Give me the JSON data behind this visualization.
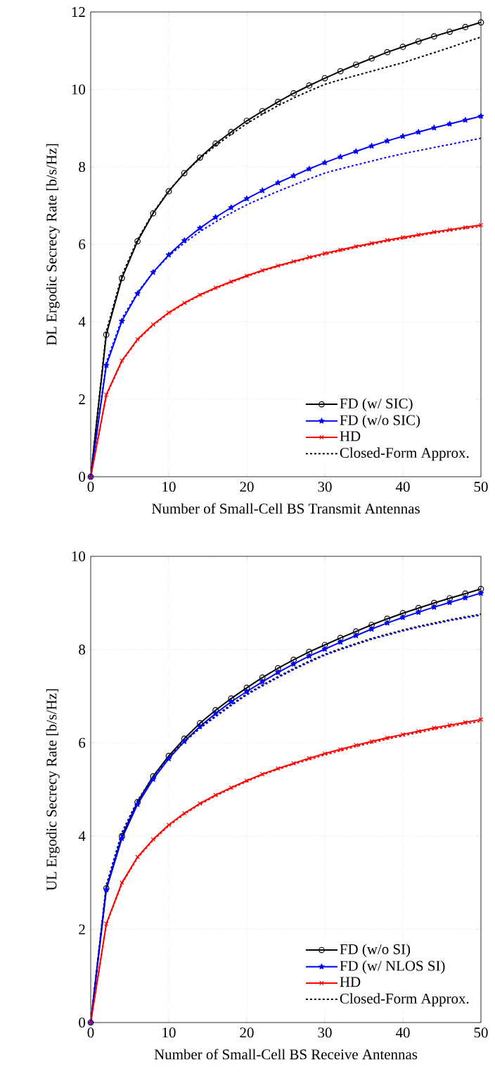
{
  "chart_data": [
    {
      "type": "line",
      "xlabel": "Number of Small-Cell BS Transmit Antennas",
      "ylabel": "DL Ergodic Secrecy Rate [b/s/Hz]",
      "x": [
        0,
        2,
        4,
        6,
        8,
        10,
        12,
        14,
        16,
        18,
        20,
        22,
        24,
        26,
        28,
        30,
        32,
        34,
        36,
        38,
        40,
        42,
        44,
        46,
        48,
        50
      ],
      "xlim": [
        0,
        50
      ],
      "xticks": [
        0,
        10,
        20,
        30,
        40,
        50
      ],
      "ylim": [
        0,
        12
      ],
      "yticks": [
        0,
        2,
        4,
        6,
        8,
        10,
        12
      ],
      "grid": true,
      "legend": "bottom right",
      "series": [
        {
          "name": "FD (w/ SIC)",
          "color": "#000000",
          "marker": "circle",
          "line_style": "solid",
          "values": [
            0,
            3.67,
            5.13,
            6.08,
            6.8,
            7.37,
            7.84,
            8.24,
            8.6,
            8.9,
            9.19,
            9.44,
            9.68,
            9.9,
            10.1,
            10.29,
            10.47,
            10.64,
            10.8,
            10.96,
            11.1,
            11.24,
            11.37,
            11.49,
            11.61,
            11.73
          ]
        },
        {
          "name": "FD (w/o SIC)",
          "color": "#0000ff",
          "marker": "star",
          "line_style": "solid",
          "values": [
            0,
            2.88,
            4.02,
            4.73,
            5.28,
            5.73,
            6.1,
            6.42,
            6.7,
            6.95,
            7.18,
            7.39,
            7.59,
            7.77,
            7.95,
            8.11,
            8.26,
            8.4,
            8.54,
            8.67,
            8.79,
            8.9,
            9.01,
            9.11,
            9.21,
            9.31
          ]
        },
        {
          "name": "HD",
          "color": "#ff0000",
          "marker": "cross",
          "line_style": "solid",
          "values": [
            0,
            2.12,
            3.0,
            3.55,
            3.93,
            4.24,
            4.49,
            4.7,
            4.88,
            5.04,
            5.19,
            5.33,
            5.45,
            5.56,
            5.67,
            5.77,
            5.86,
            5.95,
            6.03,
            6.11,
            6.18,
            6.25,
            6.32,
            6.38,
            6.44,
            6.5
          ]
        },
        {
          "name": "Closed-Form Approx.",
          "color": "#000000",
          "marker": "none",
          "line_style": "dashed",
          "values": [
            0,
            3.75,
            5.2,
            6.12,
            6.82,
            7.38,
            7.84,
            8.22,
            8.55,
            8.84,
            9.12,
            9.36,
            9.58,
            9.78,
            9.96,
            10.13,
            10.25,
            10.36,
            10.47,
            10.58,
            10.69,
            10.82,
            10.95,
            11.08,
            11.22,
            11.35
          ]
        },
        {
          "color": "#0000ff",
          "marker": "none",
          "line_style": "dashed",
          "values": [
            0,
            2.95,
            4.08,
            4.76,
            5.28,
            5.7,
            6.04,
            6.33,
            6.58,
            6.81,
            7.02,
            7.2,
            7.37,
            7.53,
            7.69,
            7.84,
            7.95,
            8.05,
            8.15,
            8.25,
            8.34,
            8.42,
            8.5,
            8.58,
            8.66,
            8.74
          ]
        },
        {
          "color": "#ff0000",
          "marker": "none",
          "line_style": "dashed",
          "values": [
            0,
            2.1,
            2.98,
            3.53,
            3.91,
            4.22,
            4.47,
            4.68,
            4.86,
            5.02,
            5.17,
            5.31,
            5.43,
            5.54,
            5.64,
            5.74,
            5.83,
            5.92,
            6.0,
            6.08,
            6.15,
            6.22,
            6.29,
            6.35,
            6.41,
            6.46
          ]
        }
      ]
    },
    {
      "type": "line",
      "xlabel": "Number of Small-Cell BS Receive Antennas",
      "ylabel": "UL Ergodic Secrecy Rate [b/s/Hz]",
      "x": [
        0,
        2,
        4,
        6,
        8,
        10,
        12,
        14,
        16,
        18,
        20,
        22,
        24,
        26,
        28,
        30,
        32,
        34,
        36,
        38,
        40,
        42,
        44,
        46,
        48,
        50
      ],
      "xlim": [
        0,
        50
      ],
      "xticks": [
        0,
        10,
        20,
        30,
        40,
        50
      ],
      "ylim": [
        0,
        10
      ],
      "yticks": [
        0,
        2,
        4,
        6,
        8,
        10
      ],
      "grid": true,
      "legend": "bottom right",
      "series": [
        {
          "name": "FD (w/o SI)",
          "color": "#000000",
          "marker": "circle",
          "line_style": "solid",
          "values": [
            0,
            2.88,
            4.0,
            4.73,
            5.28,
            5.72,
            6.09,
            6.42,
            6.7,
            6.95,
            7.18,
            7.4,
            7.6,
            7.78,
            7.95,
            8.1,
            8.25,
            8.39,
            8.53,
            8.66,
            8.78,
            8.89,
            9.0,
            9.1,
            9.2,
            9.3
          ]
        },
        {
          "name": "FD (w/ NLOS SI)",
          "color": "#0000ff",
          "marker": "star",
          "line_style": "solid",
          "values": [
            0,
            2.85,
            3.95,
            4.68,
            5.22,
            5.66,
            6.03,
            6.35,
            6.63,
            6.88,
            7.1,
            7.31,
            7.51,
            7.69,
            7.86,
            8.01,
            8.16,
            8.3,
            8.44,
            8.57,
            8.69,
            8.8,
            8.91,
            9.01,
            9.11,
            9.21
          ]
        },
        {
          "name": "HD",
          "color": "#ff0000",
          "marker": "cross",
          "line_style": "solid",
          "values": [
            0,
            2.12,
            3.0,
            3.55,
            3.93,
            4.24,
            4.49,
            4.7,
            4.88,
            5.04,
            5.19,
            5.33,
            5.45,
            5.56,
            5.67,
            5.77,
            5.86,
            5.95,
            6.03,
            6.11,
            6.18,
            6.25,
            6.32,
            6.38,
            6.44,
            6.5
          ]
        },
        {
          "name": "Closed-Form Approx.",
          "color": "#000000",
          "marker": "none",
          "line_style": "dashed",
          "values": [
            0,
            2.95,
            4.08,
            4.76,
            5.28,
            5.7,
            6.04,
            6.33,
            6.58,
            6.82,
            7.05,
            7.24,
            7.42,
            7.59,
            7.75,
            7.9,
            8.02,
            8.13,
            8.24,
            8.33,
            8.42,
            8.5,
            8.57,
            8.64,
            8.7,
            8.76
          ]
        },
        {
          "color": "#0000ff",
          "marker": "none",
          "line_style": "dashed",
          "values": [
            0,
            2.93,
            4.06,
            4.74,
            5.26,
            5.68,
            6.02,
            6.31,
            6.56,
            6.8,
            7.03,
            7.22,
            7.4,
            7.57,
            7.73,
            7.88,
            8.0,
            8.11,
            8.22,
            8.31,
            8.4,
            8.48,
            8.55,
            8.62,
            8.68,
            8.74
          ]
        },
        {
          "color": "#ff0000",
          "marker": "none",
          "line_style": "dashed",
          "values": [
            0,
            2.1,
            2.98,
            3.53,
            3.91,
            4.22,
            4.47,
            4.68,
            4.86,
            5.02,
            5.17,
            5.31,
            5.43,
            5.54,
            5.64,
            5.74,
            5.83,
            5.92,
            6.0,
            6.08,
            6.15,
            6.22,
            6.29,
            6.35,
            6.41,
            6.46
          ]
        }
      ]
    }
  ]
}
